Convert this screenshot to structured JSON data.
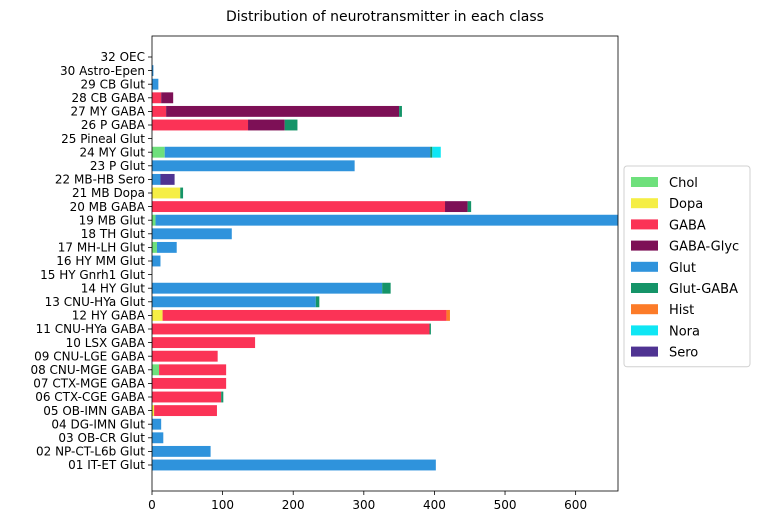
{
  "chart_data": {
    "type": "bar",
    "orientation": "horizontal",
    "stacked": true,
    "title": "Distribution of neurotransmitter in each class",
    "xlim": [
      0,
      660
    ],
    "x_ticks": [
      0,
      100,
      200,
      300,
      400,
      500,
      600
    ],
    "grid": false,
    "legend_position": "center-right-outside",
    "categories": [
      "01 IT-ET Glut",
      "02 NP-CT-L6b Glut",
      "03 OB-CR Glut",
      "04 DG-IMN Glut",
      "05 OB-IMN GABA",
      "06 CTX-CGE GABA",
      "07 CTX-MGE GABA",
      "08 CNU-MGE GABA",
      "09 CNU-LGE GABA",
      "10 LSX GABA",
      "11 CNU-HYa GABA",
      "12 HY GABA",
      "13 CNU-HYa Glut",
      "14 HY Glut",
      "15 HY Gnrh1 Glut",
      "16 HY MM Glut",
      "17 MH-LH Glut",
      "18 TH Glut",
      "19 MB Glut",
      "20 MB GABA",
      "21 MB Dopa",
      "22 MB-HB Sero",
      "23 P Glut",
      "24 MY Glut",
      "25 Pineal Glut",
      "26 P GABA",
      "27 MY GABA",
      "28 CB GABA",
      "29 CB Glut",
      "30 Astro-Epen",
      "32 OEC"
    ],
    "series": [
      {
        "name": "Chol",
        "color": "#6ee07c",
        "values": [
          0,
          0,
          0,
          0,
          0,
          0,
          0,
          10,
          0,
          0,
          0,
          0,
          0,
          0,
          0,
          0,
          7,
          0,
          5,
          0,
          0,
          0,
          0,
          18,
          0,
          0,
          0,
          0,
          0,
          0,
          0
        ]
      },
      {
        "name": "Dopa",
        "color": "#f5ee45",
        "values": [
          0,
          0,
          0,
          0,
          3,
          0,
          0,
          0,
          0,
          0,
          0,
          15,
          0,
          0,
          0,
          0,
          0,
          0,
          0,
          0,
          40,
          0,
          0,
          0,
          0,
          0,
          0,
          0,
          0,
          0,
          0
        ]
      },
      {
        "name": "GABA",
        "color": "#fb3356",
        "values": [
          0,
          0,
          0,
          0,
          89,
          98,
          105,
          95,
          93,
          146,
          393,
          402,
          0,
          0,
          0,
          0,
          0,
          0,
          0,
          415,
          0,
          0,
          0,
          0,
          0,
          136,
          20,
          13,
          0,
          0,
          0
        ]
      },
      {
        "name": "GABA-Glyc",
        "color": "#7d1056",
        "values": [
          0,
          0,
          0,
          0,
          0,
          0,
          0,
          0,
          0,
          0,
          0,
          0,
          0,
          0,
          0,
          0,
          0,
          0,
          0,
          32,
          0,
          0,
          0,
          0,
          0,
          52,
          330,
          17,
          0,
          0,
          0
        ]
      },
      {
        "name": "Glut",
        "color": "#2f93dc",
        "values": [
          402,
          83,
          16,
          13,
          0,
          0,
          0,
          0,
          0,
          0,
          0,
          0,
          232,
          326,
          0,
          12,
          28,
          113,
          655,
          0,
          0,
          12,
          287,
          376,
          0,
          0,
          0,
          0,
          9,
          2,
          0
        ]
      },
      {
        "name": "Glut-GABA",
        "color": "#159468",
        "values": [
          0,
          0,
          0,
          0,
          0,
          3,
          0,
          0,
          0,
          0,
          2,
          0,
          5,
          12,
          0,
          0,
          0,
          0,
          0,
          5,
          4,
          0,
          0,
          3,
          0,
          18,
          4,
          0,
          0,
          0,
          0
        ]
      },
      {
        "name": "Hist",
        "color": "#fc7b28",
        "values": [
          0,
          0,
          0,
          0,
          0,
          0,
          0,
          0,
          0,
          0,
          0,
          5,
          0,
          0,
          0,
          0,
          0,
          0,
          0,
          0,
          0,
          0,
          0,
          0,
          0,
          0,
          0,
          0,
          0,
          0,
          0
        ]
      },
      {
        "name": "Nora",
        "color": "#0fe6f4",
        "values": [
          0,
          0,
          0,
          0,
          0,
          0,
          0,
          0,
          0,
          0,
          0,
          0,
          0,
          0,
          0,
          0,
          0,
          0,
          0,
          0,
          0,
          0,
          0,
          12,
          0,
          0,
          0,
          0,
          0,
          0,
          0
        ]
      },
      {
        "name": "Sero",
        "color": "#4f3392",
        "values": [
          0,
          0,
          0,
          0,
          0,
          0,
          0,
          0,
          0,
          0,
          0,
          0,
          0,
          0,
          0,
          0,
          0,
          0,
          0,
          0,
          0,
          20,
          0,
          0,
          0,
          0,
          0,
          0,
          0,
          0,
          0
        ]
      }
    ]
  }
}
